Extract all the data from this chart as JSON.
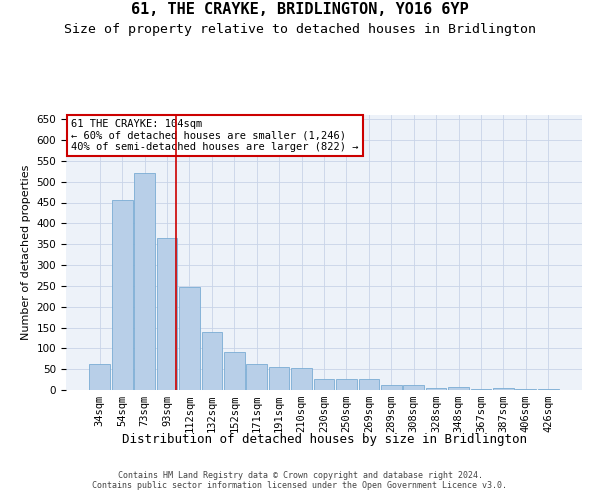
{
  "title": "61, THE CRAYKE, BRIDLINGTON, YO16 6YP",
  "subtitle": "Size of property relative to detached houses in Bridlington",
  "xlabel": "Distribution of detached houses by size in Bridlington",
  "ylabel": "Number of detached properties",
  "categories": [
    "34sqm",
    "54sqm",
    "73sqm",
    "93sqm",
    "112sqm",
    "132sqm",
    "152sqm",
    "171sqm",
    "191sqm",
    "210sqm",
    "230sqm",
    "250sqm",
    "269sqm",
    "289sqm",
    "308sqm",
    "328sqm",
    "348sqm",
    "367sqm",
    "387sqm",
    "406sqm",
    "426sqm"
  ],
  "values": [
    62,
    455,
    522,
    366,
    247,
    139,
    91,
    62,
    55,
    53,
    26,
    26,
    26,
    11,
    12,
    6,
    8,
    3,
    4,
    3,
    3
  ],
  "bar_color": "#b8cfe8",
  "bar_edge_color": "#7aacd4",
  "background_color": "#edf2f9",
  "grid_color": "#c8d4e8",
  "vline_x_idx": 3,
  "vline_color": "#cc0000",
  "annotation_text": "61 THE CRAYKE: 104sqm\n← 60% of detached houses are smaller (1,246)\n40% of semi-detached houses are larger (822) →",
  "annotation_box_color": "#ffffff",
  "annotation_box_edge_color": "#cc0000",
  "ylim": [
    0,
    660
  ],
  "yticks": [
    0,
    50,
    100,
    150,
    200,
    250,
    300,
    350,
    400,
    450,
    500,
    550,
    600,
    650
  ],
  "footer_text": "Contains HM Land Registry data © Crown copyright and database right 2024.\nContains public sector information licensed under the Open Government Licence v3.0.",
  "title_fontsize": 11,
  "subtitle_fontsize": 9.5,
  "xlabel_fontsize": 9,
  "ylabel_fontsize": 8,
  "tick_fontsize": 7.5,
  "annotation_fontsize": 7.5,
  "footer_fontsize": 6
}
